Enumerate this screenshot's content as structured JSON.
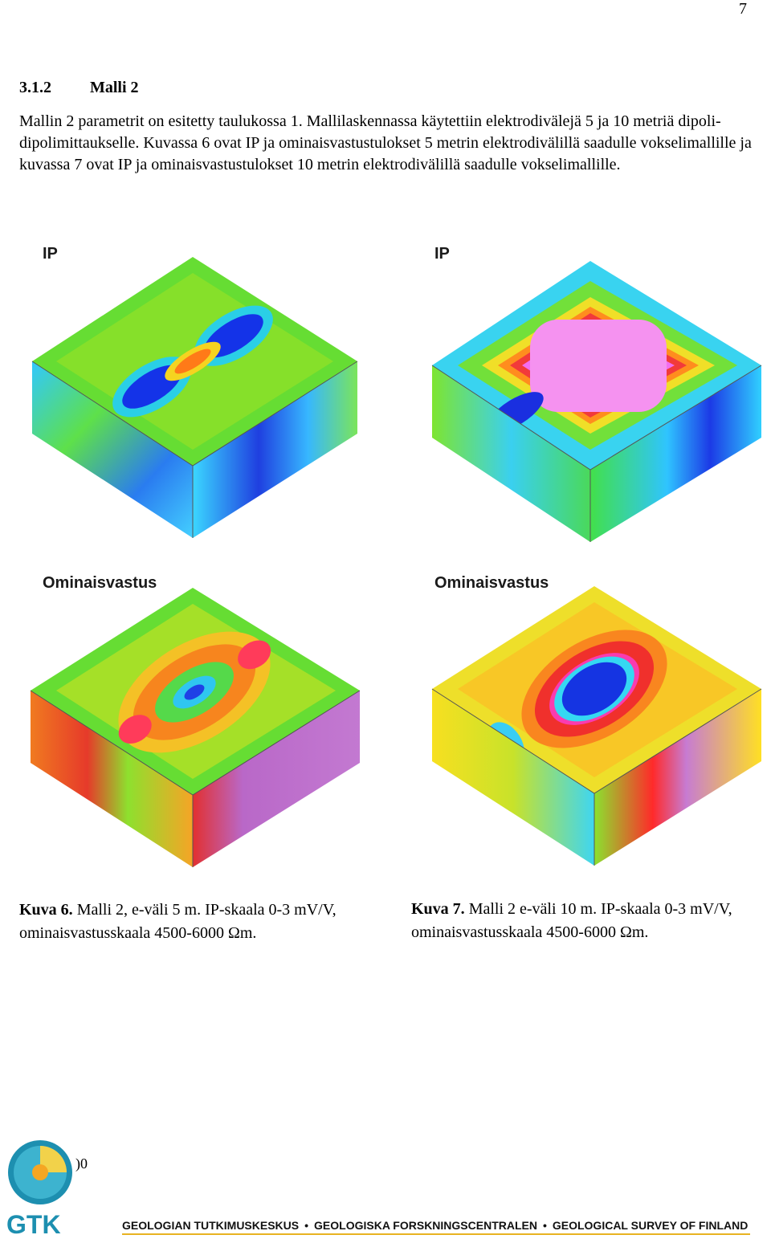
{
  "page_number": "7",
  "section": {
    "number": "3.1.2",
    "title": "Malli 2"
  },
  "paragraph": "Mallin 2 parametrit on esitetty taulukossa 1. Mallilaskennassa käytettiin elektrodivälejä 5 ja 10 metriä dipoli-dipolimittaukselle. Kuvassa 6 ovat IP ja ominaisvastustulokset 5 metrin elektrodivälillä saadulle vokselimallille ja kuvassa 7 ovat IP ja ominaisvastustulokset 10 metrin elektrodivälillä saadulle vokselimallille.",
  "figures": {
    "top_left_label": "IP",
    "top_right_label": "IP",
    "bottom_left_label": "Ominaisvastus",
    "bottom_right_label": "Ominaisvastus"
  },
  "captions": {
    "left": {
      "tag": "Kuva 6.",
      "text": " Malli 2, e-väli 5 m. IP-skaala 0-3 mV/V, ominaisvastusskaala 4500-6000 Ωm."
    },
    "right": {
      "tag": "Kuva 7.",
      "text": " Malli 2 e-väli 10 m. IP-skaala 0-3 mV/V, ominaisvastusskaala 4500-6000 Ωm."
    }
  },
  "footer": {
    "logo_text": "GTK",
    "page_fragment": ")0",
    "org_fi": "GEOLOGIAN TUTKIMUSKESKUS",
    "org_sv": "GEOLOGISKA FORSKNINGSCENTRALEN",
    "org_en": "GEOLOGICAL SURVEY OF FINLAND",
    "accent_color": "#e8b321"
  }
}
